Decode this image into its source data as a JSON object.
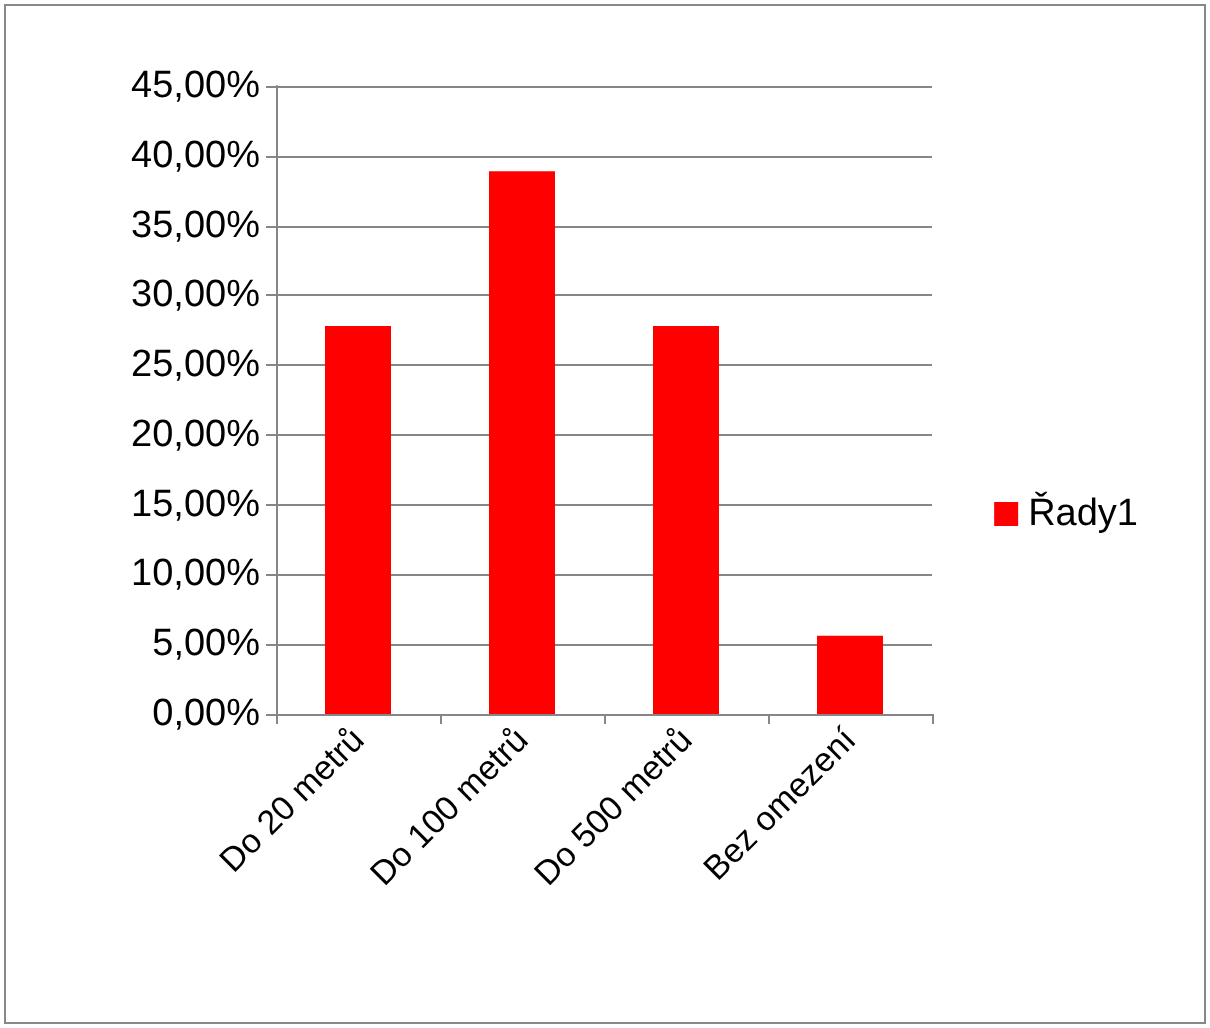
{
  "chart_data": {
    "type": "bar",
    "categories": [
      "Do 20 metrů",
      "Do 100 metrů",
      "Do 500 metrů",
      "Bez omezení"
    ],
    "series": [
      {
        "name": "Řady1",
        "color": "#ff0000",
        "values": [
          27.8,
          38.9,
          27.8,
          5.6
        ]
      }
    ],
    "ylim": [
      0,
      45
    ],
    "yticks": [
      {
        "value": 0,
        "label": "0,00%"
      },
      {
        "value": 5,
        "label": "5,00%"
      },
      {
        "value": 10,
        "label": "10,00%"
      },
      {
        "value": 15,
        "label": "15,00%"
      },
      {
        "value": 20,
        "label": "20,00%"
      },
      {
        "value": 25,
        "label": "25,00%"
      },
      {
        "value": 30,
        "label": "30,00%"
      },
      {
        "value": 35,
        "label": "35,00%"
      },
      {
        "value": 40,
        "label": "40,00%"
      },
      {
        "value": 45,
        "label": "45,00%"
      }
    ],
    "grid": "y",
    "legend": "right"
  }
}
